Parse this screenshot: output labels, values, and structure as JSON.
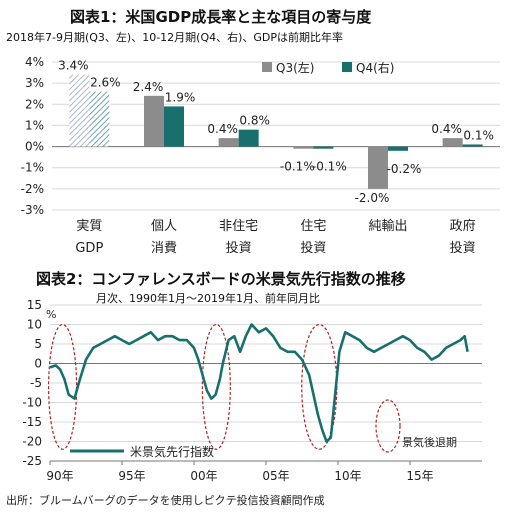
{
  "chart_data": [
    {
      "type": "bar",
      "title": "図表1：米国GDP成長率と主な項目の寄与度",
      "subtitle": "2018年7-9月期(Q3、左)、10-12月期(Q4、右)、GDPは前期比年率",
      "categories": [
        [
          "実質",
          "GDP"
        ],
        [
          "個人",
          "消費"
        ],
        [
          "非住宅",
          "投資"
        ],
        [
          "住宅",
          "投資"
        ],
        [
          "純輸出",
          ""
        ],
        [
          "政府",
          "投資"
        ]
      ],
      "series": [
        {
          "name": "Q3(左)",
          "color": "#8c8c8c",
          "values": [
            3.4,
            2.4,
            0.4,
            -0.1,
            -2.0,
            0.4
          ]
        },
        {
          "name": "Q4(右)",
          "color": "#17706e",
          "values": [
            2.6,
            1.9,
            0.8,
            -0.1,
            -0.2,
            0.1
          ]
        }
      ],
      "value_labels": [
        [
          "3.4%",
          "2.6%"
        ],
        [
          "2.4%",
          "1.9%"
        ],
        [
          "0.4%",
          "0.8%"
        ],
        [
          "-0.1%",
          "-0.1%"
        ],
        [
          "-2.0%",
          "-0.2%"
        ],
        [
          "0.4%",
          "0.1%"
        ]
      ],
      "ylim": [
        -3,
        4
      ],
      "yticks": [
        4,
        3,
        2,
        1,
        0,
        -1,
        -2,
        -3
      ],
      "ytick_labels": [
        "4%",
        "3%",
        "2%",
        "1%",
        "0%",
        "-1%",
        "-2%",
        "-3%"
      ],
      "hatched_category": 0,
      "legend_position": "top-right"
    },
    {
      "type": "line",
      "title": "図表2：コンファレンスボードの米景気先行指数の推移",
      "subtitle": "月次、1990年1月～2019年1月、前年同月比",
      "ylabel": "%",
      "ylim": [
        -25,
        15
      ],
      "yticks": [
        15,
        10,
        5,
        0,
        -5,
        -10,
        -15,
        -20,
        -25
      ],
      "xlim": [
        1990,
        2020
      ],
      "xticks": [
        1990,
        1995,
        2000,
        2005,
        2010,
        2015
      ],
      "xtick_labels": [
        "90年",
        "95年",
        "00年",
        "05年",
        "10年",
        "15年"
      ],
      "series": [
        {
          "name": "米景気先行指数",
          "color": "#17706e",
          "x": [
            1990.0,
            1990.4,
            1990.7,
            1991.0,
            1991.3,
            1991.7,
            1992.0,
            1992.5,
            1993.0,
            1993.5,
            1994.0,
            1994.5,
            1995.0,
            1995.5,
            1996.0,
            1996.5,
            1997.0,
            1997.5,
            1998.0,
            1998.5,
            1999.0,
            1999.5,
            2000.0,
            2000.3,
            2000.6,
            2000.9,
            2001.2,
            2001.5,
            2001.8,
            2002.0,
            2002.4,
            2002.8,
            2003.2,
            2003.6,
            2004.0,
            2004.5,
            2005.0,
            2005.5,
            2006.0,
            2006.5,
            2007.0,
            2007.5,
            2008.0,
            2008.3,
            2008.6,
            2008.9,
            2009.2,
            2009.5,
            2009.8,
            2010.1,
            2010.5,
            2011.0,
            2011.5,
            2012.0,
            2012.5,
            2013.0,
            2013.5,
            2014.0,
            2014.5,
            2015.0,
            2015.5,
            2016.0,
            2016.5,
            2017.0,
            2017.5,
            2018.0,
            2018.5,
            2018.8,
            2019.0
          ],
          "y": [
            -1,
            -0.5,
            -1.5,
            -4,
            -8,
            -9,
            -5,
            1,
            4,
            5,
            6,
            7,
            6,
            5,
            6,
            7,
            8,
            6,
            7,
            7,
            6,
            6,
            4,
            1,
            -3,
            -7,
            -9,
            -8,
            -4,
            0,
            6,
            7,
            3,
            7,
            10,
            8,
            9,
            7,
            4,
            3,
            3,
            1,
            -3,
            -8,
            -13,
            -17,
            -20,
            -19,
            -8,
            3,
            8,
            7,
            6,
            4,
            3,
            4,
            5,
            6,
            7,
            6,
            4,
            3,
            1,
            2,
            4,
            5,
            6,
            7,
            3
          ]
        }
      ],
      "annotations": [
        {
          "text": "景気後退期"
        }
      ],
      "recession_periods": [
        [
          1990.5,
          1991.25
        ],
        [
          2001.2,
          2001.9
        ],
        [
          2007.9,
          2009.5
        ]
      ],
      "legend_position": "bottom-left"
    }
  ],
  "source": "出所：ブルームバーグのデータを使用しピクテ投信投資顧問作成"
}
